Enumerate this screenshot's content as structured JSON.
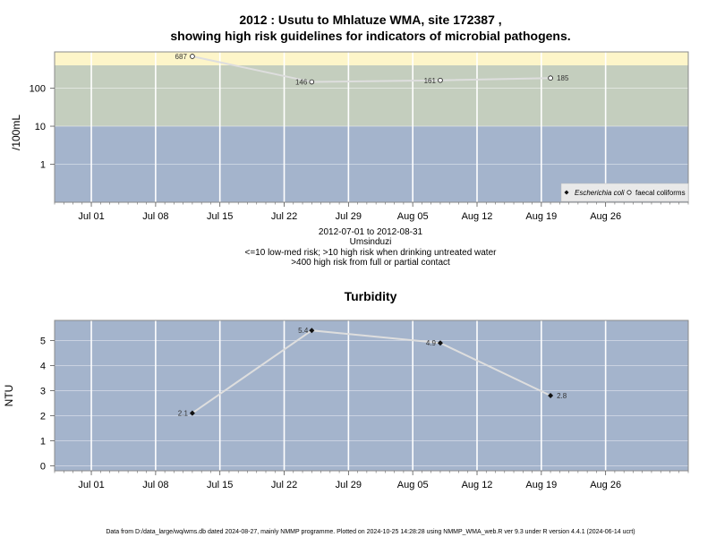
{
  "chart_data": [
    {
      "type": "line",
      "title_line1": "2012 : Usutu to Mhlatuze WMA, site 172387 ,",
      "title_line2": "showing high risk guidelines for indicators of microbial pathogens.",
      "ylabel": "/100mL",
      "yscale": "log",
      "ylim": [
        0.1,
        900
      ],
      "xlim": [
        "2012-06-27",
        "2012-09-04"
      ],
      "yticks": [
        1,
        10,
        100
      ],
      "ytick_labels": [
        "1",
        "10",
        "100"
      ],
      "xticks": [
        "2012-07-01",
        "2012-07-08",
        "2012-07-15",
        "2012-07-22",
        "2012-07-29",
        "2012-08-05",
        "2012-08-12",
        "2012-08-19",
        "2012-08-26"
      ],
      "xtick_labels": [
        "Jul 01",
        "Jul 08",
        "Jul 15",
        "Jul 22",
        "Jul 29",
        "Aug 05",
        "Aug 12",
        "Aug 19",
        "Aug 26"
      ],
      "bands": [
        {
          "from": 0.1,
          "to": 10,
          "color": "#a4b4cc"
        },
        {
          "from": 10,
          "to": 400,
          "color": "#c4cebe"
        },
        {
          "from": 400,
          "to": 900,
          "color": "#fdf5c9"
        }
      ],
      "series": [
        {
          "name": "faecal coliforms",
          "marker": "open-circle",
          "x": [
            "2012-07-12",
            "2012-07-25",
            "2012-08-08",
            "2012-08-20"
          ],
          "y": [
            687,
            146,
            161,
            185
          ],
          "labels": [
            "687",
            "146",
            "161",
            "185"
          ]
        }
      ],
      "legend": {
        "position": "bottom-right",
        "items": [
          {
            "label": "Escherichia coli",
            "marker": "filled-diamond"
          },
          {
            "label": "faecal coliforms",
            "marker": "open-circle"
          }
        ]
      },
      "subtitle_lines": [
        "2012-07-01 to 2012-08-31",
        "Umsinduzi",
        "<=10 low-med risk; >10 high risk when drinking untreated water",
        ">400 high risk from full or partial contact"
      ]
    },
    {
      "type": "line",
      "title": "Turbidity",
      "ylabel": "NTU",
      "ylim": [
        -0.2,
        5.8
      ],
      "xlim": [
        "2012-06-27",
        "2012-09-04"
      ],
      "yticks": [
        0,
        1,
        2,
        3,
        4,
        5
      ],
      "ytick_labels": [
        "0",
        "1",
        "2",
        "3",
        "4",
        "5"
      ],
      "xticks": [
        "2012-07-01",
        "2012-07-08",
        "2012-07-15",
        "2012-07-22",
        "2012-07-29",
        "2012-08-05",
        "2012-08-12",
        "2012-08-19",
        "2012-08-26"
      ],
      "xtick_labels": [
        "Jul 01",
        "Jul 08",
        "Jul 15",
        "Jul 22",
        "Jul 29",
        "Aug 05",
        "Aug 12",
        "Aug 19",
        "Aug 26"
      ],
      "background": "#a4b4cc",
      "series": [
        {
          "marker": "filled-diamond",
          "x": [
            "2012-07-12",
            "2012-07-25",
            "2012-08-08",
            "2012-08-20"
          ],
          "y": [
            2.1,
            5.4,
            4.9,
            2.8
          ],
          "labels": [
            "2.1",
            "5.4",
            "4.9",
            "2.8"
          ]
        }
      ]
    }
  ],
  "footer": "Data from D:/data_large/wq/wms.db dated 2024-08-27, mainly NMMP programme. Plotted on 2024-10-25 14:28:28 using NMMP_WMA_web.R ver 9.3 under R version 4.4.1 (2024-06-14 ucrt)"
}
